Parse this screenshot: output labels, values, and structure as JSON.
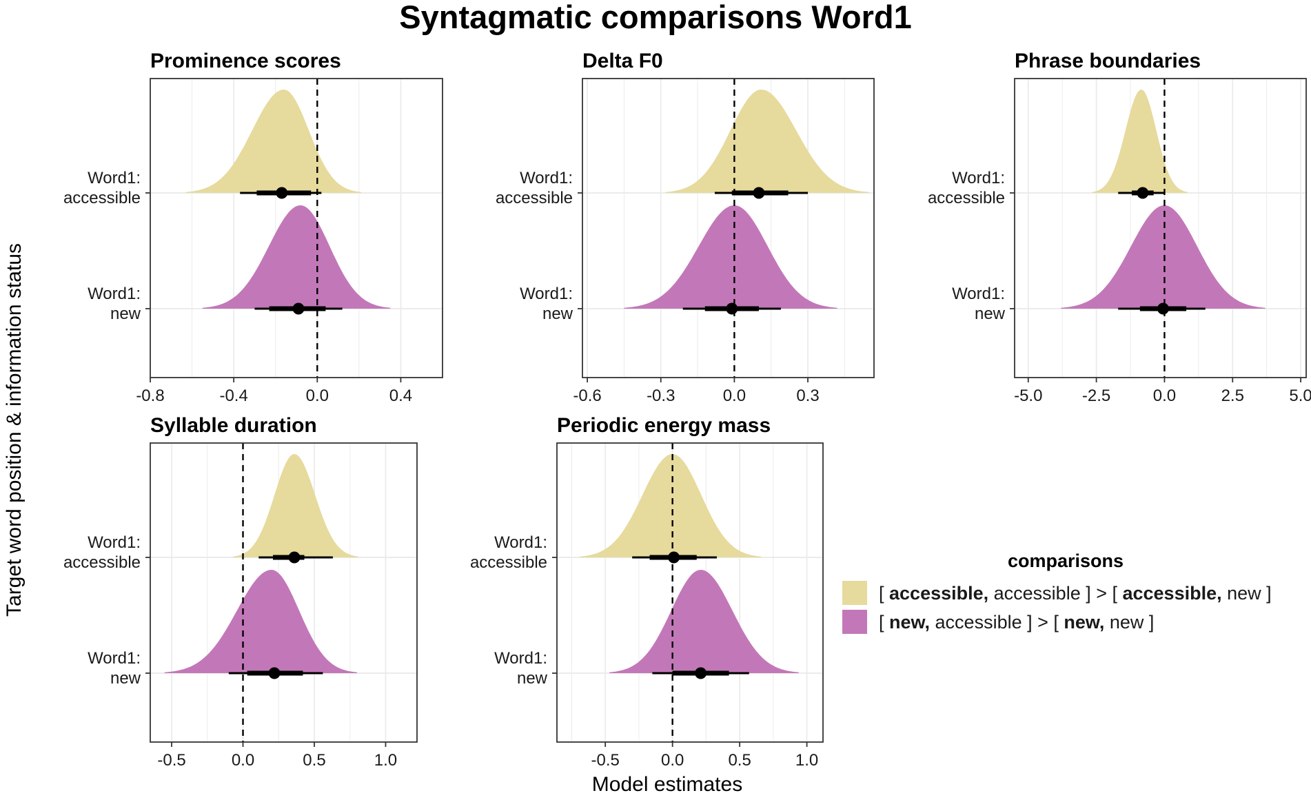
{
  "figure": {
    "title": "Syntagmatic comparisons Word1",
    "ylabel": "Target word position & information status",
    "xlabel": "Model estimates"
  },
  "legend": {
    "title": "comparisons",
    "placement": "right",
    "items": [
      {
        "color": "#e6da9d",
        "parts": [
          [
            "[ ",
            false
          ],
          [
            "accessible,",
            true
          ],
          [
            " accessible ] > [ ",
            false
          ],
          [
            "accessible,",
            true
          ],
          [
            " new ]",
            false
          ]
        ]
      },
      {
        "color": "#c278b8",
        "parts": [
          [
            "[ ",
            false
          ],
          [
            "new,",
            true
          ],
          [
            " accessible ] > [ ",
            false
          ],
          [
            "new,",
            true
          ],
          [
            " new ]",
            false
          ]
        ]
      }
    ]
  },
  "colors": {
    "accessible": "#e6da9d",
    "new": "#c278b8",
    "grid": "#ebebeb",
    "axis": "#333333"
  },
  "chart_data": [
    {
      "type": "area",
      "title": "Prominence scores",
      "xlim": [
        -0.8,
        0.6
      ],
      "xticks": [
        -0.8,
        -0.4,
        0.0,
        0.4
      ],
      "xtick_labels": [
        "-0.8",
        "-0.4",
        "0.0",
        "0.4"
      ],
      "reference_line": 0,
      "categories": [
        "Word1:\naccessible",
        "Word1:\nnew"
      ],
      "series": [
        {
          "name": "Word1: accessible",
          "point": -0.17,
          "interval_66": [
            -0.29,
            -0.03
          ],
          "interval_95": [
            -0.37,
            0.02
          ],
          "spread_left": 0.47,
          "spread_right": 0.37,
          "peak_at": -0.16
        },
        {
          "name": "Word1: new",
          "point": -0.09,
          "interval_66": [
            -0.23,
            0.04
          ],
          "interval_95": [
            -0.3,
            0.12
          ],
          "spread_left": 0.47,
          "spread_right": 0.43,
          "peak_at": -0.08
        }
      ]
    },
    {
      "type": "area",
      "title": "Delta F0",
      "xlim": [
        -0.62,
        0.57
      ],
      "xticks": [
        -0.6,
        -0.3,
        0.0,
        0.3
      ],
      "xtick_labels": [
        "-0.6",
        "-0.3",
        "0.0",
        "0.3"
      ],
      "reference_line": 0,
      "categories": [
        "Word1:\naccessible",
        "Word1:\nnew"
      ],
      "series": [
        {
          "name": "Word1: accessible",
          "point": 0.1,
          "interval_66": [
            -0.01,
            0.22
          ],
          "interval_95": [
            -0.08,
            0.3
          ],
          "spread_left": 0.39,
          "spread_right": 0.44,
          "peak_at": 0.11
        },
        {
          "name": "Word1: new",
          "point": -0.01,
          "interval_66": [
            -0.12,
            0.1
          ],
          "interval_95": [
            -0.21,
            0.19
          ],
          "spread_left": 0.45,
          "spread_right": 0.42,
          "peak_at": 0.0
        }
      ]
    },
    {
      "type": "area",
      "title": "Phrase boundaries",
      "xlim": [
        -5.5,
        5.2
      ],
      "xticks": [
        -5.0,
        -2.5,
        0.0,
        2.5,
        5.0
      ],
      "xtick_labels": [
        "-5.0",
        "-2.5",
        "0.0",
        "2.5",
        "5.0"
      ],
      "reference_line": 0,
      "categories": [
        "Word1:\naccessible",
        "Word1:\nnew"
      ],
      "series": [
        {
          "name": "Word1: accessible",
          "point": -0.8,
          "interval_66": [
            -1.2,
            -0.4
          ],
          "interval_95": [
            -1.7,
            0.0
          ],
          "spread_left": 1.8,
          "spread_right": 1.7,
          "peak_at": -0.85
        },
        {
          "name": "Word1: new",
          "point": -0.05,
          "interval_66": [
            -0.9,
            0.8
          ],
          "interval_95": [
            -1.7,
            1.5
          ],
          "spread_left": 3.8,
          "spread_right": 3.7,
          "peak_at": 0.0
        }
      ]
    },
    {
      "type": "area",
      "title": "Syllable duration",
      "xlim": [
        -0.65,
        1.22
      ],
      "xticks": [
        -0.5,
        0.0,
        0.5,
        1.0
      ],
      "xtick_labels": [
        "-0.5",
        "0.0",
        "0.5",
        "1.0"
      ],
      "reference_line": 0,
      "categories": [
        "Word1:\naccessible",
        "Word1:\nnew"
      ],
      "series": [
        {
          "name": "Word1: accessible",
          "point": 0.36,
          "interval_66": [
            0.21,
            0.43
          ],
          "interval_95": [
            0.11,
            0.63
          ],
          "spread_left": 0.43,
          "spread_right": 0.45,
          "peak_at": 0.36
        },
        {
          "name": "Word1: new",
          "point": 0.22,
          "interval_66": [
            0.03,
            0.42
          ],
          "interval_95": [
            -0.1,
            0.56
          ],
          "spread_left": 0.75,
          "spread_right": 0.6,
          "peak_at": 0.2
        }
      ]
    },
    {
      "type": "area",
      "title": "Periodic energy mass",
      "xlim": [
        -0.86,
        1.12
      ],
      "xticks": [
        -0.5,
        0.0,
        0.5,
        1.0
      ],
      "xtick_labels": [
        "-0.5",
        "0.0",
        "0.5",
        "1.0"
      ],
      "reference_line": 0,
      "categories": [
        "Word1:\naccessible",
        "Word1:\nnew"
      ],
      "series": [
        {
          "name": "Word1: accessible",
          "point": 0.01,
          "interval_66": [
            -0.17,
            0.18
          ],
          "interval_95": [
            -0.3,
            0.33
          ],
          "spread_left": 0.69,
          "spread_right": 0.66,
          "peak_at": 0.0
        },
        {
          "name": "Word1: new",
          "point": 0.21,
          "interval_66": [
            0.0,
            0.42
          ],
          "interval_95": [
            -0.15,
            0.57
          ],
          "spread_left": 0.68,
          "spread_right": 0.73,
          "peak_at": 0.21
        }
      ]
    }
  ]
}
